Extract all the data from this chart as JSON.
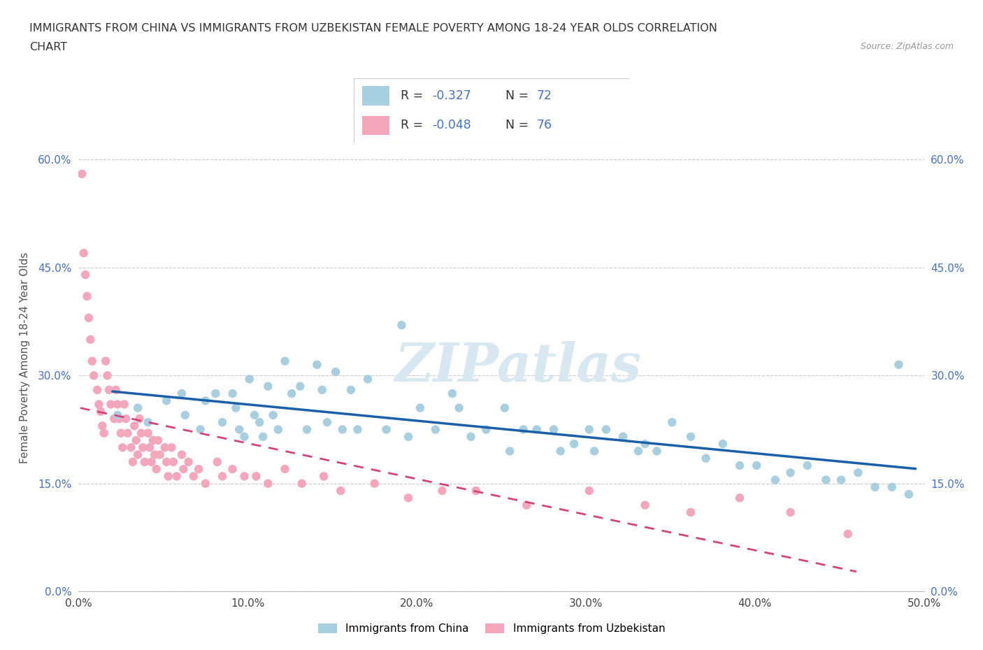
{
  "title_line1": "IMMIGRANTS FROM CHINA VS IMMIGRANTS FROM UZBEKISTAN FEMALE POVERTY AMONG 18-24 YEAR OLDS CORRELATION",
  "title_line2": "CHART",
  "source": "Source: ZipAtlas.com",
  "ylabel": "Female Poverty Among 18-24 Year Olds",
  "xlim": [
    0.0,
    0.5
  ],
  "ylim": [
    0.0,
    0.65
  ],
  "x_ticks": [
    0.0,
    0.1,
    0.2,
    0.3,
    0.4,
    0.5
  ],
  "x_tick_labels": [
    "0.0%",
    "10.0%",
    "20.0%",
    "30.0%",
    "40.0%",
    "50.0%"
  ],
  "y_ticks": [
    0.0,
    0.15,
    0.3,
    0.45,
    0.6
  ],
  "y_tick_labels": [
    "0.0%",
    "15.0%",
    "30.0%",
    "45.0%",
    "60.0%"
  ],
  "china_color": "#a8cfe0",
  "china_color_line": "#1a5fa8",
  "uzbekistan_color": "#f4a7bc",
  "uzbekistan_color_line": "#d44478",
  "china_R": "-0.327",
  "china_N": "72",
  "uzbekistan_R": "-0.048",
  "uzbekistan_N": "76",
  "watermark": "ZIPatlas",
  "legend_label_china": "Immigrants from China",
  "legend_label_uzbekistan": "Immigrants from Uzbekistan",
  "china_x": [
    0.023,
    0.035,
    0.041,
    0.052,
    0.061,
    0.063,
    0.072,
    0.075,
    0.081,
    0.085,
    0.091,
    0.093,
    0.095,
    0.098,
    0.101,
    0.104,
    0.107,
    0.109,
    0.112,
    0.115,
    0.118,
    0.122,
    0.126,
    0.131,
    0.135,
    0.141,
    0.144,
    0.147,
    0.152,
    0.156,
    0.161,
    0.165,
    0.171,
    0.182,
    0.191,
    0.195,
    0.202,
    0.211,
    0.221,
    0.225,
    0.232,
    0.241,
    0.252,
    0.255,
    0.263,
    0.271,
    0.281,
    0.285,
    0.293,
    0.302,
    0.305,
    0.312,
    0.322,
    0.331,
    0.335,
    0.342,
    0.351,
    0.362,
    0.371,
    0.381,
    0.391,
    0.401,
    0.412,
    0.421,
    0.431,
    0.442,
    0.451,
    0.461,
    0.471,
    0.481,
    0.491,
    0.485
  ],
  "china_y": [
    0.245,
    0.255,
    0.235,
    0.265,
    0.275,
    0.245,
    0.225,
    0.265,
    0.275,
    0.235,
    0.275,
    0.255,
    0.225,
    0.215,
    0.295,
    0.245,
    0.235,
    0.215,
    0.285,
    0.245,
    0.225,
    0.32,
    0.275,
    0.285,
    0.225,
    0.315,
    0.28,
    0.235,
    0.305,
    0.225,
    0.28,
    0.225,
    0.295,
    0.225,
    0.37,
    0.215,
    0.255,
    0.225,
    0.275,
    0.255,
    0.215,
    0.225,
    0.255,
    0.195,
    0.225,
    0.225,
    0.225,
    0.195,
    0.205,
    0.225,
    0.195,
    0.225,
    0.215,
    0.195,
    0.205,
    0.195,
    0.235,
    0.215,
    0.185,
    0.205,
    0.175,
    0.175,
    0.155,
    0.165,
    0.175,
    0.155,
    0.155,
    0.165,
    0.145,
    0.145,
    0.135,
    0.315
  ],
  "uzbekistan_x": [
    0.002,
    0.003,
    0.004,
    0.005,
    0.006,
    0.007,
    0.008,
    0.009,
    0.011,
    0.012,
    0.013,
    0.014,
    0.015,
    0.016,
    0.017,
    0.018,
    0.019,
    0.021,
    0.022,
    0.023,
    0.024,
    0.025,
    0.026,
    0.027,
    0.028,
    0.029,
    0.031,
    0.032,
    0.033,
    0.034,
    0.035,
    0.036,
    0.037,
    0.038,
    0.039,
    0.041,
    0.042,
    0.043,
    0.044,
    0.045,
    0.046,
    0.047,
    0.048,
    0.051,
    0.052,
    0.053,
    0.055,
    0.056,
    0.058,
    0.061,
    0.062,
    0.065,
    0.068,
    0.071,
    0.075,
    0.082,
    0.085,
    0.091,
    0.098,
    0.105,
    0.112,
    0.122,
    0.132,
    0.145,
    0.155,
    0.175,
    0.195,
    0.215,
    0.235,
    0.265,
    0.302,
    0.335,
    0.362,
    0.391,
    0.421,
    0.455
  ],
  "uzbekistan_y": [
    0.58,
    0.47,
    0.44,
    0.41,
    0.38,
    0.35,
    0.32,
    0.3,
    0.28,
    0.26,
    0.25,
    0.23,
    0.22,
    0.32,
    0.3,
    0.28,
    0.26,
    0.24,
    0.28,
    0.26,
    0.24,
    0.22,
    0.2,
    0.26,
    0.24,
    0.22,
    0.2,
    0.18,
    0.23,
    0.21,
    0.19,
    0.24,
    0.22,
    0.2,
    0.18,
    0.22,
    0.2,
    0.18,
    0.21,
    0.19,
    0.17,
    0.21,
    0.19,
    0.2,
    0.18,
    0.16,
    0.2,
    0.18,
    0.16,
    0.19,
    0.17,
    0.18,
    0.16,
    0.17,
    0.15,
    0.18,
    0.16,
    0.17,
    0.16,
    0.16,
    0.15,
    0.17,
    0.15,
    0.16,
    0.14,
    0.15,
    0.13,
    0.14,
    0.14,
    0.12,
    0.14,
    0.12,
    0.11,
    0.13,
    0.11,
    0.08
  ]
}
